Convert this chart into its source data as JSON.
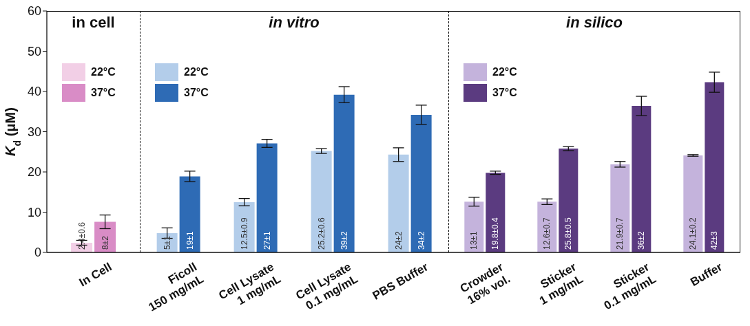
{
  "chart_data": [
    {
      "type": "bar",
      "title": "in cell",
      "ylabel": "K$_{d}$ (μM)",
      "categories": [
        "In Cell"
      ],
      "ylim": [
        0,
        60
      ],
      "yticks": [
        0,
        10,
        20,
        30,
        40,
        50,
        60
      ],
      "legend": "top left",
      "series": [
        {
          "name": "22°C",
          "color": "#f2cfe6",
          "values": [
            2.4
          ],
          "errors": [
            0.6
          ],
          "value_labels": [
            "2.4±0.6"
          ]
        },
        {
          "name": "37°C",
          "color": "#d98cc6",
          "values": [
            7.6
          ],
          "errors": [
            1.7
          ],
          "value_labels": [
            "8±2"
          ]
        }
      ]
    },
    {
      "type": "bar",
      "title": "in vitro",
      "categories": [
        "Ficoll 150 mg/mL",
        "Cell Lysate 1 mg/mL",
        "Cell Lysate 0.1 mg/mL",
        "PBS Buffer"
      ],
      "ylim": [
        0,
        60
      ],
      "tick_labels": "x",
      "legend": "top left",
      "series": [
        {
          "name": "22°C",
          "color": "#b3cdea",
          "values": [
            4.8,
            12.5,
            25.2,
            24.3
          ],
          "errors": [
            1.3,
            0.9,
            0.6,
            1.7
          ],
          "value_labels": [
            "5±1",
            "12.5±0.9",
            "25.2±0.6",
            "24±2"
          ]
        },
        {
          "name": "37°C",
          "color": "#2e6bb5",
          "values": [
            18.9,
            27.1,
            39.2,
            34.2
          ],
          "errors": [
            1.3,
            1,
            2,
            2.4
          ],
          "value_labels": [
            "19±1",
            "27±1",
            "39±2",
            "34±2"
          ]
        }
      ]
    },
    {
      "type": "bar",
      "title": "in silico",
      "categories": [
        "Crowder 16% vol.",
        "Sticker 1 mg/mL",
        "Sticker 0.1 mg/mL",
        "Buffer"
      ],
      "ylim": [
        0,
        60
      ],
      "tick_labels": "x",
      "legend": "top left",
      "series": [
        {
          "name": "22°C",
          "color": "#c4b3dc",
          "values": [
            12.6,
            12.6,
            21.9,
            24.1
          ],
          "errors": [
            1.1,
            0.7,
            0.7,
            0.2
          ],
          "value_labels": [
            "13±1",
            "12.6±0.7",
            "21.9±0.7",
            "24.1±0.2"
          ]
        },
        {
          "name": "37°C",
          "color": "#5b3b80",
          "values": [
            19.8,
            25.8,
            36.4,
            42.3
          ],
          "errors": [
            0.4,
            0.5,
            2.4,
            2.5
          ],
          "value_labels": [
            "19.8±0.4",
            "25.8±0.5",
            "36±2",
            "42±3"
          ]
        }
      ]
    }
  ]
}
